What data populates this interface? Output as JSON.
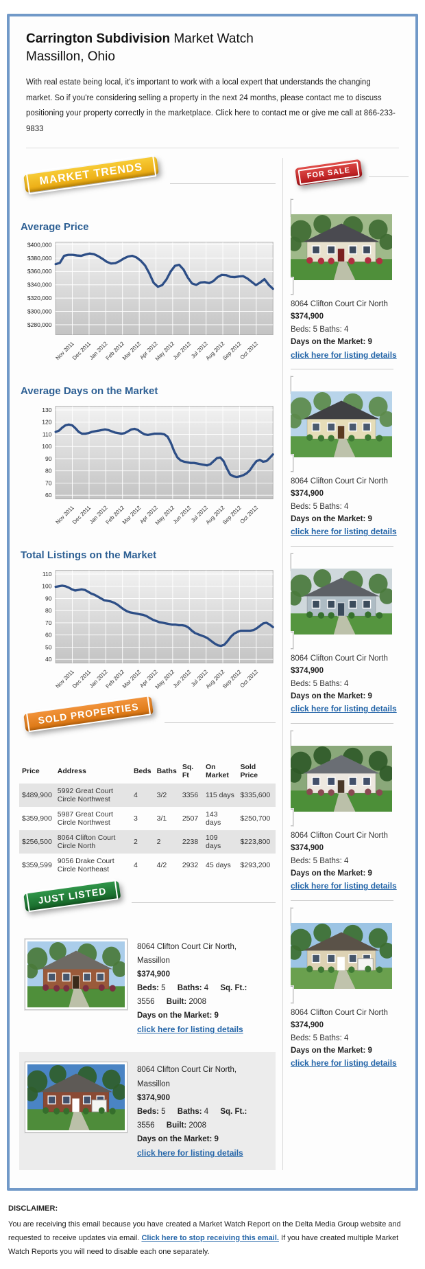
{
  "header": {
    "title_bold": "Carrington Subdivision",
    "title_rest": " Market Watch",
    "subtitle": "Massillon, Ohio",
    "intro": "With real estate being local, it's important to work with a local expert that understands the changing market. So if you're considering selling a property in the next 24 months, please contact me to discuss positioning your property correctly in the marketplace. Click here to contact me or give me call at 866-233-9833"
  },
  "badges": {
    "market_trends": "MARKET TRENDS",
    "for_sale": "FOR SALE",
    "sold_properties": "SOLD PROPERTIES",
    "just_listed": "JUST LISTED"
  },
  "chart_data": [
    {
      "type": "line",
      "title": "Average Price",
      "xlabel": "",
      "ylabel": "",
      "categories": [
        "Nov 2011",
        "Dec 2011",
        "Jan 2012",
        "Feb 2012",
        "Mar 2012",
        "Apr 2012",
        "May 2012",
        "Jun 2012",
        "Jul 2012",
        "Aug 2012",
        "Sep 2012",
        "Oct 2012"
      ],
      "ylim": [
        265000,
        404000
      ],
      "yticks": [
        280000,
        300000,
        320000,
        340000,
        360000,
        380000,
        400000
      ],
      "ytick_labels": [
        "$280,000",
        "$300,000",
        "$320,000",
        "$340,000",
        "$360,000",
        "$380,000",
        "$400,000"
      ],
      "grid": true,
      "values": [
        371000,
        373000,
        383500,
        385000,
        385000,
        384000,
        383500,
        385500,
        387000,
        386000,
        383000,
        379000,
        374500,
        372000,
        372500,
        375500,
        379500,
        382500,
        383500,
        381000,
        376000,
        369000,
        357000,
        343000,
        337000,
        339500,
        348000,
        360000,
        368500,
        370000,
        363000,
        351000,
        342000,
        340000,
        343500,
        344000,
        342500,
        345500,
        351500,
        355000,
        354500,
        352000,
        351500,
        352500,
        353000,
        349500,
        344500,
        339500,
        343500,
        348500,
        340000,
        334000
      ]
    },
    {
      "type": "line",
      "title": "Average Days on the Market",
      "xlabel": "",
      "ylabel": "",
      "categories": [
        "Nov 2011",
        "Dec 2011",
        "Jan 2012",
        "Feb 2012",
        "Mar 2012",
        "Apr 2012",
        "May 2012",
        "Jun 2012",
        "Jul 2012",
        "Aug 2012",
        "Sep 2012",
        "Oct 2012"
      ],
      "ylim": [
        57,
        133
      ],
      "yticks": [
        60,
        70,
        80,
        90,
        100,
        110,
        120,
        130
      ],
      "ytick_labels": [
        "60",
        "70",
        "80",
        "90",
        "100",
        "110",
        "120",
        "130"
      ],
      "grid": true,
      "values": [
        112,
        113,
        115.5,
        117.5,
        118,
        117.5,
        115,
        112,
        110.5,
        110.5,
        111,
        112,
        112.5,
        113,
        113.5,
        114,
        113.5,
        112.5,
        111.5,
        111,
        110.5,
        111,
        112.5,
        114,
        114.5,
        113.5,
        111.5,
        110,
        109.5,
        110,
        110.5,
        110.5,
        110.5,
        110,
        108,
        103,
        96,
        91,
        88.5,
        87.5,
        87,
        86.5,
        86.5,
        86,
        85.5,
        85,
        84.5,
        85.5,
        88,
        90.5,
        91,
        88,
        82,
        77,
        75.5,
        75,
        75.5,
        76.5,
        78,
        80.5,
        84.5,
        88,
        89,
        87.5,
        88,
        90.5,
        93.5
      ]
    },
    {
      "type": "line",
      "title": "Total Listings on the Market",
      "xlabel": "",
      "ylabel": "",
      "categories": [
        "Nov 2011",
        "Dec 2011",
        "Jan 2012",
        "Feb 2012",
        "Mar 2012",
        "Apr 2012",
        "May 2012",
        "Jun 2012",
        "Jul 2012",
        "Aug 2012",
        "Sep 2012",
        "Oct 2012"
      ],
      "ylim": [
        37,
        113
      ],
      "yticks": [
        40,
        50,
        60,
        70,
        80,
        90,
        100,
        110
      ],
      "ytick_labels": [
        "40",
        "50",
        "60",
        "70",
        "80",
        "90",
        "100",
        "110"
      ],
      "grid": true,
      "values": [
        99.5,
        100,
        100.5,
        100,
        99,
        97.5,
        96.5,
        97,
        97.5,
        97,
        95.5,
        94,
        93,
        91.5,
        90,
        88.5,
        88,
        87.5,
        86.5,
        85,
        83,
        81,
        79.5,
        78.5,
        78,
        77.5,
        77,
        76.5,
        75.5,
        74,
        72.5,
        71.5,
        70.5,
        70,
        69.5,
        69,
        68.5,
        68.5,
        68,
        68,
        67.5,
        66,
        63.5,
        61.5,
        60.5,
        59.5,
        58.5,
        57,
        55,
        53,
        51.5,
        51,
        52,
        55,
        58.5,
        61,
        62.5,
        63.5,
        63.5,
        63.5,
        63.5,
        64,
        65.5,
        67.5,
        69.5,
        70,
        68.5,
        66.5
      ]
    }
  ],
  "sold_table": {
    "headers": [
      "Price",
      "Address",
      "Beds",
      "Baths",
      "Sq. Ft",
      "On Market",
      "Sold Price"
    ],
    "rows": [
      [
        "$489,900",
        "5992 Great Court Circle Northwest",
        "4",
        "3/2",
        "3356",
        "115 days",
        "$335,600"
      ],
      [
        "$359,900",
        "5987 Great Court Circle Northwest",
        "3",
        "3/1",
        "2507",
        "143 days",
        "$250,700"
      ],
      [
        "$256,500",
        "8064 Clifton Court Circle North",
        "2",
        "2",
        "2238",
        "109 days",
        "$223,800"
      ],
      [
        "$359,599",
        "9056 Drake Court Circle Northeast",
        "4",
        "4/2",
        "2932",
        "45 days",
        "$293,200"
      ]
    ]
  },
  "labels": {
    "beds": "Beds:",
    "baths": "Baths:",
    "sqft": "Sq. Ft.:",
    "built": "Built:",
    "days": "Days on the Market:"
  },
  "just_listed": [
    {
      "address": "8064 Clifton Court Cir North, Massillon",
      "price": "$374,900",
      "beds": "5",
      "baths": "4",
      "sqft": "3556",
      "built": "2008",
      "days": "9",
      "link": "click here for listing details"
    },
    {
      "address": "8064 Clifton Court Cir North, Massillon",
      "price": "$374,900",
      "beds": "5",
      "baths": "4",
      "sqft": "3556",
      "built": "2008",
      "days": "9",
      "link": "click here for listing details"
    }
  ],
  "for_sale_listings": [
    {
      "address": "8064 Clifton Court Cir North",
      "price": "$374,900",
      "beds_baths": "Beds: 5 Baths: 4",
      "days_line": "Days on the Market: 9",
      "link": "click here for listing details"
    },
    {
      "address": "8064 Clifton Court Cir North",
      "price": "$374,900",
      "beds_baths": "Beds: 5 Baths: 4",
      "days_line": "Days on the Market: 9",
      "link": "click here for listing details"
    },
    {
      "address": "8064 Clifton Court Cir North",
      "price": "$374,900",
      "beds_baths": "Beds: 5 Baths: 4",
      "days_line": "Days on the Market: 9",
      "link": "click here for listing details"
    },
    {
      "address": "8064 Clifton Court Cir North",
      "price": "$374,900",
      "beds_baths": "Beds: 5 Baths: 4",
      "days_line": "Days on the Market: 9",
      "link": "click here for listing details"
    },
    {
      "address": "8064 Clifton Court Cir North",
      "price": "$374,900",
      "beds_baths": "Beds: 5 Baths: 4",
      "days_line": "Days on the Market: 9",
      "link": "click here for listing details"
    }
  ],
  "disclaimer": {
    "heading": "DISCLAIMER:",
    "text_before": "You are receiving this email because you have created a Market Watch Report on the Delta Media Group website and requested to receive updates via email. ",
    "link": "Click here to stop receiving this email.",
    "text_after": " If you have created multiple Market Watch Reports you will need to disable each one separately."
  },
  "colors": {
    "frame_blue": "#7199c8",
    "heading_blue": "#2e6094",
    "chart_line": "#2d4e86",
    "link_blue": "#2465a8",
    "badge_gold": "#eaa60d",
    "badge_red": "#b41318",
    "badge_orange": "#d8730e",
    "badge_green": "#156326"
  },
  "photos": [
    {
      "sky": "#9fb98a",
      "tree": "#3f6b33",
      "grass": "#4f8f3a",
      "wall": "#e8e2ce",
      "roof": "#4a4a50",
      "door": "#7a2020",
      "window": "#3d4a5c",
      "bush": "#b03040"
    },
    {
      "sky": "#b8d4ea",
      "tree": "#5b8a4a",
      "grass": "#5a9a46",
      "wall": "#e6ddb8",
      "roof": "#3f4043",
      "door": "#5a3a20",
      "window": "#4a5a6e",
      "bush": "#3f7a35"
    },
    {
      "sky": "#cfd8dc",
      "tree": "#4a7a3c",
      "grass": "#55953f",
      "wall": "#aebcc4",
      "roof": "#5d6166",
      "door": "#3a4a5a",
      "window": "#3c4c5c",
      "bush": "#36702e"
    },
    {
      "sky": "#8aa87a",
      "tree": "#2f5a28",
      "grass": "#4c8f38",
      "wall": "#ede8e0",
      "roof": "#6a6e74",
      "door": "#4a3828",
      "window": "#42506a",
      "bush": "#8a4a52"
    },
    {
      "sky": "#9cc4e4",
      "tree": "#3c6e30",
      "grass": "#6aa04e",
      "wall": "#ddd2b4",
      "roof": "#5a5248",
      "door": "#ffffff",
      "window": "#46566a",
      "bush": "#3f7a35",
      "garage": true
    },
    {
      "sky": "#aacdea",
      "tree": "#4a7a3a",
      "grass": "#4f8f3a",
      "wall": "#9a5a3a",
      "roof": "#6e6a64",
      "door": "#3a2a1a",
      "window": "#47566c",
      "bush": "#7a3040"
    },
    {
      "sky": "#4a84c4",
      "tree": "#2f5e2a",
      "grass": "#4e8c3a",
      "wall": "#8a4a34",
      "roof": "#5e5a56",
      "door": "#ffffff",
      "window": "#42506a",
      "bush": "#356e2c",
      "garage": true
    }
  ]
}
